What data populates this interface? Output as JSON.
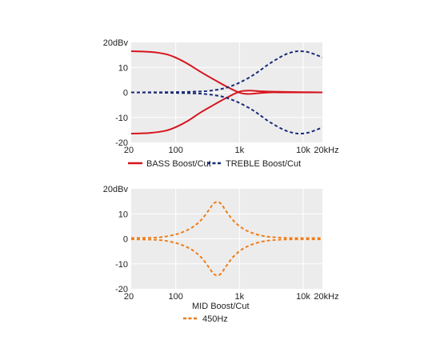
{
  "chart_data": [
    {
      "type": "line",
      "xscale": "log",
      "xlim": [
        20,
        20000
      ],
      "ylim": [
        -20,
        20
      ],
      "grid": true,
      "legend_position": "bottom",
      "x_ticks": [
        {
          "value": 20,
          "label": "20"
        },
        {
          "value": 100,
          "label": "100"
        },
        {
          "value": 1000,
          "label": "1k"
        },
        {
          "value": 10000,
          "label": "10k"
        },
        {
          "value": 20000,
          "label": "20kHz"
        }
      ],
      "y_ticks": [
        {
          "value": 20,
          "label": "20dBv"
        },
        {
          "value": 10,
          "label": "10"
        },
        {
          "value": 0,
          "label": "0"
        },
        {
          "value": -10,
          "label": "-10"
        },
        {
          "value": -20,
          "label": "-20"
        }
      ],
      "legend": [
        {
          "label": "BASS Boost/Cut",
          "color": "#d7141e",
          "style": "solid"
        },
        {
          "label": "TREBLE Boost/Cut",
          "color": "#1a2a78",
          "style": "dashed"
        }
      ],
      "series": [
        {
          "legend_index": 0,
          "color": "#d7141e",
          "style": "solid",
          "x": [
            20,
            40,
            70,
            100,
            150,
            250,
            400,
            600,
            1000,
            1400,
            2000,
            3000,
            5000,
            10000,
            20000
          ],
          "y": [
            16.5,
            16.2,
            15.3,
            13.9,
            11.6,
            8.1,
            5.1,
            2.6,
            -0.1,
            -0.6,
            -0.3,
            0.0,
            0.0,
            0.0,
            0.0
          ]
        },
        {
          "legend_index": 0,
          "color": "#d7141e",
          "style": "solid",
          "x": [
            20,
            40,
            70,
            100,
            150,
            250,
            400,
            600,
            1000,
            1400,
            2000,
            3000,
            5000,
            10000,
            20000
          ],
          "y": [
            -16.5,
            -16.2,
            -15.3,
            -13.9,
            -11.6,
            -7.9,
            -4.9,
            -2.4,
            0.3,
            0.7,
            0.5,
            0.3,
            0.2,
            0.1,
            0.0
          ]
        },
        {
          "legend_index": 1,
          "color": "#1a2a78",
          "style": "dashed",
          "x": [
            20,
            100,
            200,
            300,
            500,
            700,
            1000,
            1500,
            2000,
            3000,
            5000,
            7000,
            9000,
            12000,
            16000,
            20000
          ],
          "y": [
            0.0,
            0.1,
            0.3,
            0.5,
            1.3,
            2.3,
            3.9,
            6.3,
            8.4,
            11.6,
            14.9,
            16.2,
            16.5,
            16.1,
            15.0,
            14.0
          ]
        },
        {
          "legend_index": 1,
          "color": "#1a2a78",
          "style": "dashed",
          "x": [
            20,
            100,
            200,
            300,
            500,
            700,
            1000,
            1500,
            2000,
            3000,
            5000,
            7000,
            9000,
            12000,
            16000,
            20000
          ],
          "y": [
            0.0,
            -0.2,
            -0.4,
            -0.7,
            -1.5,
            -2.6,
            -4.2,
            -6.6,
            -8.7,
            -11.9,
            -15.0,
            -16.2,
            -16.5,
            -16.1,
            -15.0,
            -14.0
          ]
        }
      ]
    },
    {
      "type": "line",
      "xscale": "log",
      "xlim": [
        20,
        20000
      ],
      "ylim": [
        -20,
        20
      ],
      "grid": true,
      "legend_position": "bottom",
      "x_ticks": [
        {
          "value": 20,
          "label": "20"
        },
        {
          "value": 100,
          "label": "100"
        },
        {
          "value": 1000,
          "label": "1k"
        },
        {
          "value": 10000,
          "label": "10k"
        },
        {
          "value": 20000,
          "label": "20kHz"
        }
      ],
      "y_ticks": [
        {
          "value": 20,
          "label": "20dBv"
        },
        {
          "value": 10,
          "label": "10"
        },
        {
          "value": 0,
          "label": "0"
        },
        {
          "value": -10,
          "label": "-10"
        },
        {
          "value": -20,
          "label": "-20"
        }
      ],
      "legend_title": "MID Boost/Cut",
      "legend": [
        {
          "label": "450Hz",
          "color": "#ef7d1a",
          "style": "dashed"
        }
      ],
      "series": [
        {
          "legend_index": 0,
          "color": "#ef7d1a",
          "style": "dashed",
          "x": [
            20,
            50,
            80,
            120,
            180,
            250,
            320,
            380,
            420,
            450,
            480,
            530,
            620,
            800,
            1100,
            1600,
            2500,
            4000,
            7000,
            20000
          ],
          "y": [
            0.3,
            0.5,
            1.2,
            2.4,
            4.5,
            7.5,
            11.0,
            13.7,
            14.6,
            14.8,
            14.6,
            13.6,
            11.0,
            7.3,
            4.3,
            2.3,
            1.0,
            0.5,
            0.3,
            0.3
          ]
        },
        {
          "legend_index": 0,
          "color": "#ef7d1a",
          "style": "dashed",
          "x": [
            20,
            50,
            80,
            120,
            180,
            250,
            320,
            380,
            420,
            450,
            480,
            530,
            620,
            800,
            1100,
            1600,
            2500,
            4000,
            7000,
            20000
          ],
          "y": [
            -0.2,
            -0.4,
            -1.1,
            -2.3,
            -4.4,
            -7.4,
            -10.9,
            -13.6,
            -14.5,
            -14.7,
            -14.5,
            -13.5,
            -10.9,
            -7.2,
            -4.2,
            -2.2,
            -0.9,
            -0.4,
            -0.2,
            -0.2
          ]
        }
      ]
    }
  ]
}
